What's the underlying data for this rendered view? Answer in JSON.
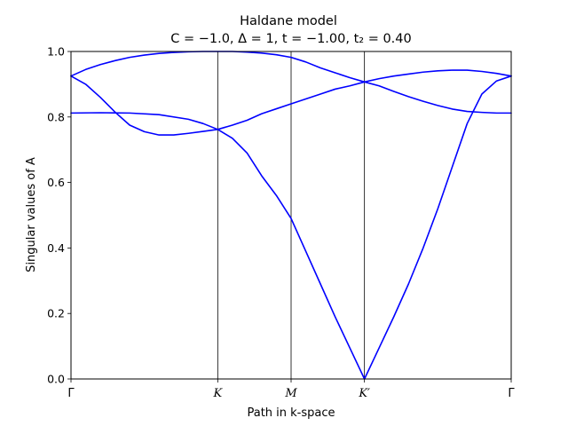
{
  "chart_data": {
    "type": "line",
    "title_line1": "Haldane model",
    "title_line2": "C = −1.0, Δ = 1, t = −1.00, t₂ = 0.40",
    "xlabel": "Path in k-space",
    "ylabel": "Singular values of A",
    "ylim": [
      0,
      1
    ],
    "yticks": [
      "0.0",
      "0.2",
      "0.4",
      "0.6",
      "0.8",
      "1.0"
    ],
    "xticks": [
      {
        "x": 0.0,
        "label": "Γ",
        "italic": false
      },
      {
        "x": 1.0,
        "label": "K",
        "italic": true
      },
      {
        "x": 1.5,
        "label": "M",
        "italic": true
      },
      {
        "x": 2.0,
        "label": "K′",
        "italic": true
      },
      {
        "x": 3.0,
        "label": "Γ",
        "italic": false
      }
    ],
    "xlim": [
      0,
      3
    ],
    "vlines": [
      1.0,
      1.5,
      2.0
    ],
    "grid": false,
    "line_color": "#0000ff",
    "series": [
      {
        "points": [
          [
            0.0,
            0.812
          ],
          [
            0.2,
            0.813
          ],
          [
            0.4,
            0.812
          ],
          [
            0.6,
            0.807
          ],
          [
            0.8,
            0.793
          ],
          [
            0.9,
            0.78
          ],
          [
            1.0,
            0.762
          ],
          [
            1.1,
            0.735
          ],
          [
            1.2,
            0.69
          ],
          [
            1.3,
            0.62
          ],
          [
            1.4,
            0.56
          ],
          [
            1.5,
            0.49
          ],
          [
            1.6,
            0.39
          ],
          [
            1.7,
            0.29
          ],
          [
            1.8,
            0.19
          ],
          [
            1.9,
            0.095
          ],
          [
            2.0,
            0.0
          ],
          [
            2.1,
            0.095
          ],
          [
            2.2,
            0.19
          ],
          [
            2.3,
            0.29
          ],
          [
            2.4,
            0.4
          ],
          [
            2.5,
            0.52
          ],
          [
            2.6,
            0.65
          ],
          [
            2.7,
            0.78
          ],
          [
            2.8,
            0.87
          ],
          [
            2.9,
            0.91
          ],
          [
            3.0,
            0.925
          ]
        ]
      },
      {
        "points": [
          [
            0.0,
            0.925
          ],
          [
            0.1,
            0.9
          ],
          [
            0.2,
            0.86
          ],
          [
            0.3,
            0.815
          ],
          [
            0.4,
            0.775
          ],
          [
            0.5,
            0.755
          ],
          [
            0.6,
            0.745
          ],
          [
            0.7,
            0.745
          ],
          [
            0.8,
            0.75
          ],
          [
            0.9,
            0.756
          ],
          [
            1.0,
            0.762
          ],
          [
            1.1,
            0.775
          ],
          [
            1.2,
            0.79
          ],
          [
            1.3,
            0.81
          ],
          [
            1.4,
            0.825
          ],
          [
            1.5,
            0.84
          ],
          [
            1.6,
            0.855
          ],
          [
            1.7,
            0.87
          ],
          [
            1.8,
            0.885
          ],
          [
            1.9,
            0.895
          ],
          [
            2.0,
            0.907
          ],
          [
            2.1,
            0.895
          ],
          [
            2.2,
            0.878
          ],
          [
            2.3,
            0.862
          ],
          [
            2.4,
            0.848
          ],
          [
            2.5,
            0.835
          ],
          [
            2.6,
            0.824
          ],
          [
            2.7,
            0.817
          ],
          [
            2.8,
            0.814
          ],
          [
            2.9,
            0.812
          ],
          [
            3.0,
            0.812
          ]
        ]
      },
      {
        "points": [
          [
            0.0,
            0.925
          ],
          [
            0.1,
            0.945
          ],
          [
            0.2,
            0.96
          ],
          [
            0.3,
            0.972
          ],
          [
            0.4,
            0.982
          ],
          [
            0.5,
            0.989
          ],
          [
            0.6,
            0.994
          ],
          [
            0.7,
            0.997
          ],
          [
            0.8,
            0.999
          ],
          [
            0.9,
            1.0
          ],
          [
            1.0,
            1.0
          ],
          [
            1.1,
            1.0
          ],
          [
            1.2,
            0.998
          ],
          [
            1.3,
            0.995
          ],
          [
            1.4,
            0.99
          ],
          [
            1.5,
            0.982
          ],
          [
            1.6,
            0.968
          ],
          [
            1.7,
            0.95
          ],
          [
            1.8,
            0.935
          ],
          [
            1.9,
            0.92
          ],
          [
            2.0,
            0.907
          ],
          [
            2.1,
            0.917
          ],
          [
            2.2,
            0.925
          ],
          [
            2.3,
            0.931
          ],
          [
            2.4,
            0.937
          ],
          [
            2.5,
            0.941
          ],
          [
            2.6,
            0.943
          ],
          [
            2.7,
            0.943
          ],
          [
            2.8,
            0.939
          ],
          [
            2.9,
            0.933
          ],
          [
            3.0,
            0.925
          ]
        ]
      }
    ]
  }
}
